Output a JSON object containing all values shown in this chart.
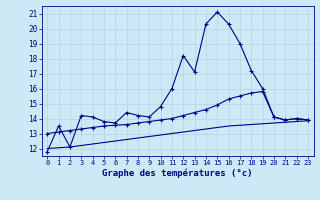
{
  "title": "",
  "xlabel": "Graphe des températures (°c)",
  "bg_color": "#cde9f6",
  "grid_color": "#b0d4e8",
  "line_color": "#00008b",
  "hours": [
    0,
    1,
    2,
    3,
    4,
    5,
    6,
    7,
    8,
    9,
    10,
    11,
    12,
    13,
    14,
    15,
    16,
    17,
    18,
    19,
    20,
    21,
    22,
    23
  ],
  "temp_main": [
    11.8,
    13.5,
    12.1,
    14.2,
    14.1,
    13.8,
    13.7,
    14.4,
    14.2,
    14.1,
    14.8,
    16.0,
    18.2,
    17.1,
    20.3,
    21.1,
    20.3,
    19.0,
    17.2,
    16.0,
    14.1,
    13.9,
    14.0,
    13.9
  ],
  "temp_upper": [
    13.0,
    13.1,
    13.2,
    13.3,
    13.4,
    13.5,
    13.55,
    13.6,
    13.7,
    13.8,
    13.9,
    14.0,
    14.2,
    14.4,
    14.6,
    14.9,
    15.3,
    15.5,
    15.7,
    15.8,
    14.1,
    13.9,
    14.0,
    13.9
  ],
  "temp_lower": [
    12.0,
    12.05,
    12.1,
    12.2,
    12.3,
    12.4,
    12.5,
    12.6,
    12.7,
    12.8,
    12.9,
    13.0,
    13.1,
    13.2,
    13.3,
    13.4,
    13.5,
    13.55,
    13.6,
    13.65,
    13.7,
    13.75,
    13.8,
    13.85
  ],
  "ylim": [
    11.5,
    21.5
  ],
  "yticks": [
    12,
    13,
    14,
    15,
    16,
    17,
    18,
    19,
    20,
    21
  ],
  "xlim": [
    -0.5,
    23.5
  ],
  "marker": "+",
  "marker_hours_main": [
    0,
    1,
    2,
    3,
    4,
    5,
    6,
    7,
    8,
    9,
    10,
    11,
    12,
    13,
    14,
    15,
    16,
    17,
    18,
    19,
    20,
    21,
    22,
    23
  ],
  "marker_hours_upper": [
    0,
    1,
    2,
    3,
    4,
    5,
    6,
    7,
    8,
    9,
    10,
    11,
    12,
    13,
    14,
    15,
    16,
    17,
    18,
    19,
    20,
    21,
    22,
    23
  ]
}
